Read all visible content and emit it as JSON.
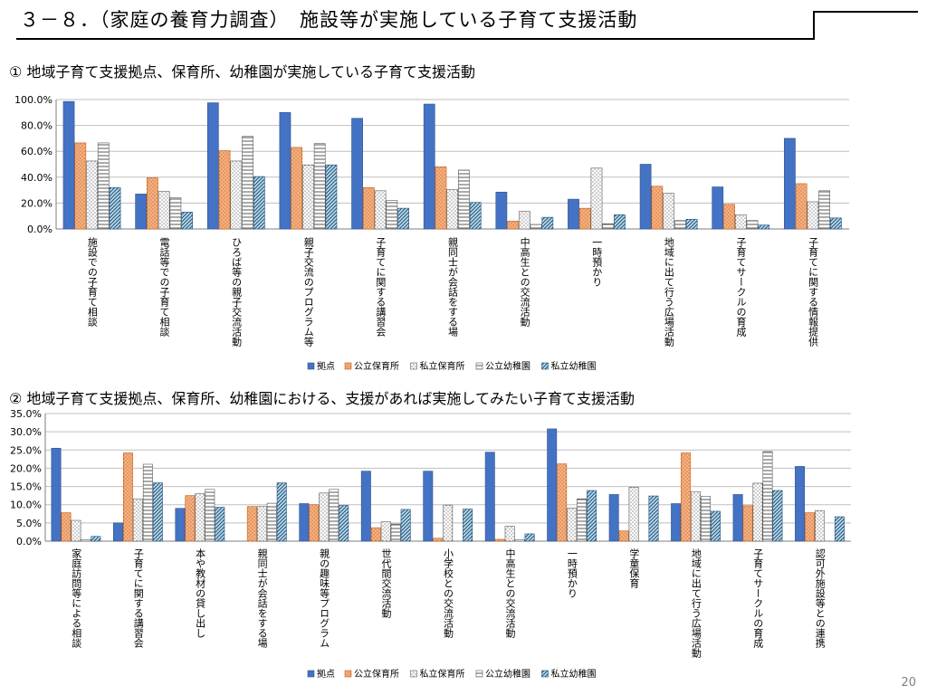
{
  "page": {
    "title": "３－８．（家庭の養育力調査）　施設等が実施している子育て支援活動",
    "page_number": "20"
  },
  "chart_data": [
    {
      "type": "bar",
      "title": "① 地域子育て支援拠点、保育所、幼稚園が実施している子育て支援活動",
      "categories": [
        "施設での子育て相談",
        "電話等での子育て相談",
        "ひろば等の親子交流活動",
        "親子交流のプログラム等",
        "子育てに関する講習会",
        "親同士が会話をする場",
        "中高生との交流活動",
        "一時預かり",
        "地域に出て行う広場活動",
        "子育てサークルの育成",
        "子育てに関する情報提供"
      ],
      "series": [
        {
          "name": "拠点",
          "values": [
            98.5,
            27,
            97.5,
            90,
            85.5,
            96.5,
            28.5,
            23,
            50,
            32.5,
            70
          ]
        },
        {
          "name": "公立保育所",
          "values": [
            66.5,
            39.5,
            60.5,
            63,
            32,
            48,
            6,
            16,
            33,
            19,
            35
          ]
        },
        {
          "name": "私立保育所",
          "values": [
            52.5,
            29,
            52.5,
            49.5,
            29.5,
            30.5,
            13.5,
            47,
            27.5,
            11,
            21
          ]
        },
        {
          "name": "公立幼稚園",
          "values": [
            66.5,
            24,
            71.5,
            66,
            22,
            45.5,
            3.5,
            4,
            6.5,
            6.5,
            29.5
          ]
        },
        {
          "name": "私立幼稚園",
          "values": [
            32,
            13,
            40.5,
            49.5,
            16,
            20.5,
            9,
            11,
            7.5,
            3,
            8.5
          ]
        }
      ],
      "ylim": [
        0,
        100
      ],
      "yticks": [
        "0.0%",
        "20.0%",
        "40.0%",
        "60.0%",
        "80.0%",
        "100.0%"
      ],
      "legend": "bottom",
      "grid": true
    },
    {
      "type": "bar",
      "title": "② 地域子育て支援拠点、保育所、幼稚園における、支援があれば実施してみたい子育て支援活動",
      "categories": [
        "家庭訪問等による相談",
        "子育てに関する講習会",
        "本や教材の貸し出し",
        "親同士が会話をする場",
        "親の趣味等プログラム",
        "世代間交流活動",
        "小学校との交流活動",
        "中高生との交流活動",
        "一時預かり",
        "学童保育",
        "地域に出て行う広場活動",
        "子育てサークルの育成",
        "認可外施設等との連携"
      ],
      "series": [
        {
          "name": "拠点",
          "values": [
            25.5,
            5,
            9,
            0,
            10.3,
            19.2,
            19.2,
            24.4,
            30.8,
            12.8,
            10.3,
            12.8,
            20.5
          ]
        },
        {
          "name": "公立保育所",
          "values": [
            7.8,
            24.2,
            12.5,
            9.5,
            10,
            3.7,
            0.8,
            0.5,
            21.2,
            2.8,
            24.2,
            9.7,
            7.8
          ]
        },
        {
          "name": "私立保育所",
          "values": [
            5.7,
            11.6,
            13,
            9.5,
            13.2,
            5.3,
            9.9,
            4.1,
            9.1,
            14.8,
            13.6,
            15.9,
            8.4
          ]
        },
        {
          "name": "公立幼稚園",
          "values": [
            0.4,
            21.1,
            14.2,
            10.4,
            14.2,
            4.7,
            0,
            0.4,
            11.6,
            0,
            12.3,
            24.6,
            0
          ]
        },
        {
          "name": "私立幼稚園",
          "values": [
            1.3,
            16,
            9.3,
            16,
            9.8,
            8.7,
            8.8,
            2,
            13.9,
            12.4,
            8.2,
            13.9,
            6.7
          ]
        }
      ],
      "ylim": [
        0,
        35
      ],
      "yticks": [
        "0.0%",
        "5.0%",
        "10.0%",
        "15.0%",
        "20.0%",
        "25.0%",
        "30.0%",
        "35.0%"
      ],
      "legend": "bottom",
      "grid": true
    }
  ]
}
